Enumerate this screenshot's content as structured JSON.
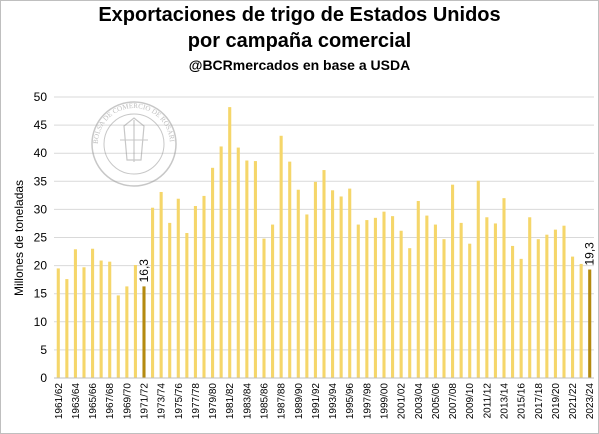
{
  "chart_data": {
    "type": "bar",
    "title": "Exportaciones de trigo de Estados Unidos",
    "title_line2": "por campaña comercial",
    "subtitle": "@BCRmercados en base a USDA",
    "ylabel": "Millones de toneladas",
    "xlabel": "",
    "ylim": [
      0,
      50
    ],
    "yticks": [
      0,
      5,
      10,
      15,
      20,
      25,
      30,
      35,
      40,
      45,
      50
    ],
    "grid": true,
    "watermark_text": "BOLSA DE COMERCIO DE ROSARIO",
    "colors": {
      "bar": "#f5d66a",
      "highlight": "#b48a10",
      "grid": "#d9d9d9"
    },
    "categories": [
      "1961/62",
      "1962/63",
      "1963/64",
      "1964/65",
      "1965/66",
      "1966/67",
      "1967/68",
      "1968/69",
      "1969/70",
      "1970/71",
      "1971/72",
      "1972/73",
      "1973/74",
      "1974/75",
      "1975/76",
      "1976/77",
      "1977/78",
      "1978/79",
      "1979/80",
      "1980/81",
      "1981/82",
      "1982/83",
      "1983/84",
      "1984/85",
      "1985/86",
      "1986/87",
      "1987/88",
      "1988/89",
      "1989/90",
      "1990/91",
      "1991/92",
      "1992/93",
      "1993/94",
      "1994/95",
      "1995/96",
      "1996/97",
      "1997/98",
      "1998/99",
      "1999/00",
      "2000/01",
      "2001/02",
      "2002/03",
      "2003/04",
      "2004/05",
      "2005/06",
      "2006/07",
      "2007/08",
      "2008/09",
      "2009/10",
      "2010/11",
      "2011/12",
      "2012/13",
      "2013/14",
      "2014/15",
      "2015/16",
      "2016/17",
      "2017/18",
      "2018/19",
      "2019/20",
      "2020/21",
      "2021/22",
      "2022/23",
      "2023/24"
    ],
    "values": [
      19.5,
      17.6,
      22.9,
      19.7,
      23.0,
      20.9,
      20.7,
      14.7,
      16.3,
      20.1,
      16.3,
      30.3,
      33.1,
      27.6,
      31.9,
      25.8,
      30.6,
      32.4,
      37.4,
      41.2,
      48.2,
      41.0,
      38.7,
      38.6,
      24.8,
      27.3,
      43.1,
      38.5,
      33.5,
      29.1,
      34.9,
      37.0,
      33.4,
      32.3,
      33.7,
      27.3,
      28.1,
      28.5,
      29.6,
      28.8,
      26.2,
      23.1,
      31.5,
      28.9,
      27.3,
      24.7,
      34.4,
      27.6,
      23.9,
      35.1,
      28.6,
      27.5,
      32.0,
      23.5,
      21.2,
      28.6,
      24.7,
      25.5,
      26.4,
      27.1,
      21.6,
      20.3,
      19.3
    ],
    "highlight": [
      {
        "category": "1971/72",
        "label": "16,3"
      },
      {
        "category": "2023/24",
        "label": "19,3"
      }
    ],
    "xtick_labels": [
      "1961/62",
      "1963/64",
      "1965/66",
      "1967/68",
      "1969/70",
      "1971/72",
      "1973/74",
      "1975/76",
      "1977/78",
      "1979/80",
      "1981/82",
      "1983/84",
      "1985/86",
      "1987/88",
      "1989/90",
      "1991/92",
      "1993/94",
      "1995/96",
      "1997/98",
      "1999/00",
      "2001/02",
      "2003/04",
      "2005/06",
      "2007/08",
      "2009/10",
      "2011/12",
      "2013/14",
      "2015/16",
      "2017/18",
      "2019/20",
      "2021/22",
      "2023/24"
    ]
  }
}
